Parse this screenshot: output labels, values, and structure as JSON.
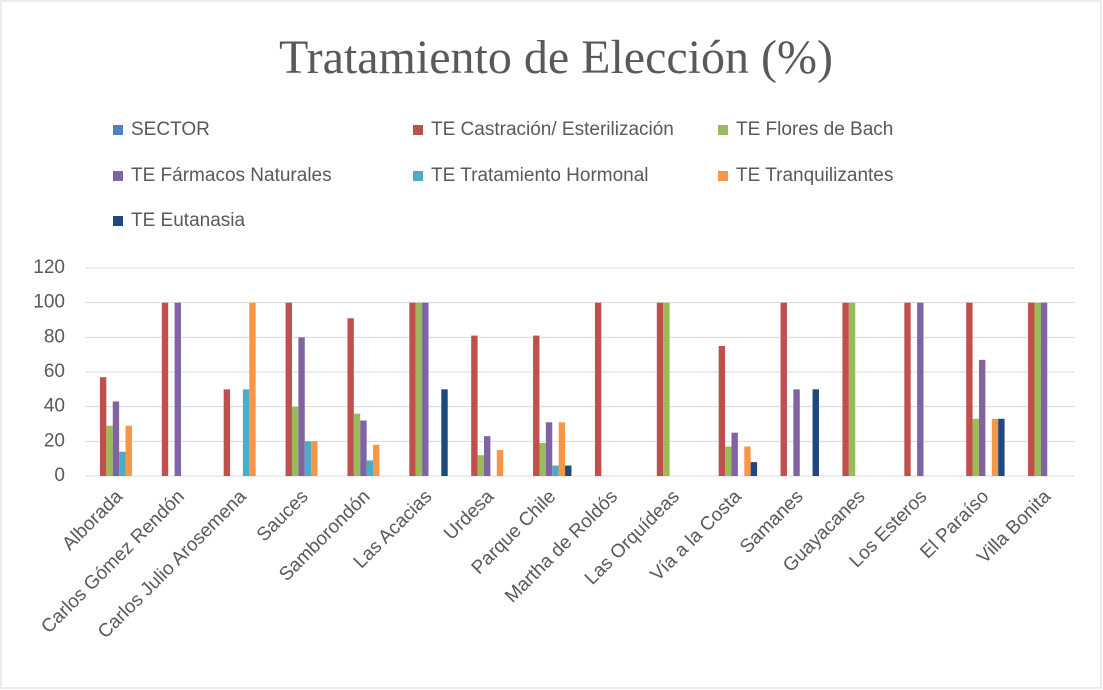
{
  "chart_data": {
    "type": "bar",
    "title": "Tratamiento de Elección (%)",
    "categories": [
      "Alborada",
      "Carlos Gómez Rendón",
      "Carlos Julio Arosemena",
      "Sauces",
      "Samborondón",
      "Las Acacias",
      "Urdesa",
      "Parque Chile",
      "Martha de Roldós",
      "Las Orquídeas",
      "Vía a la Costa",
      "Samanes",
      "Guayacanes",
      "Los Esteros",
      "El Paraíso",
      "Villa Bonita"
    ],
    "series": [
      {
        "name": "SECTOR",
        "color": "#4f81bd",
        "values": [
          null,
          null,
          null,
          null,
          null,
          null,
          null,
          null,
          null,
          null,
          null,
          null,
          null,
          null,
          null,
          null
        ]
      },
      {
        "name": "TE Castración/ Esterilización",
        "color": "#c0504d",
        "values": [
          57,
          100,
          50,
          100,
          91,
          100,
          81,
          81,
          100,
          100,
          75,
          100,
          100,
          100,
          100,
          100
        ]
      },
      {
        "name": "TE Flores de Bach",
        "color": "#9bbb59",
        "values": [
          29,
          null,
          null,
          40,
          36,
          100,
          12,
          19,
          null,
          100,
          17,
          null,
          100,
          null,
          33,
          100
        ]
      },
      {
        "name": "TE Fármacos Naturales",
        "color": "#8064a2",
        "values": [
          43,
          100,
          null,
          80,
          32,
          100,
          23,
          31,
          null,
          null,
          25,
          50,
          null,
          100,
          67,
          100
        ]
      },
      {
        "name": "TE Tratamiento Hormonal",
        "color": "#4bacc6",
        "values": [
          14,
          null,
          50,
          20,
          9,
          null,
          null,
          6,
          null,
          null,
          null,
          null,
          null,
          null,
          null,
          null
        ]
      },
      {
        "name": "TE Tranquilizantes",
        "color": "#f79646",
        "values": [
          29,
          null,
          100,
          20,
          18,
          null,
          15,
          31,
          null,
          null,
          17,
          null,
          null,
          null,
          33,
          null
        ]
      },
      {
        "name": "TE Eutanasia",
        "color": "#1f497d",
        "values": [
          null,
          null,
          null,
          null,
          null,
          50,
          null,
          6,
          null,
          null,
          8,
          50,
          null,
          null,
          33,
          null
        ]
      }
    ],
    "ylim": [
      0,
      120
    ],
    "yticks": [
      0,
      20,
      40,
      60,
      80,
      100,
      120
    ],
    "grid": true
  }
}
